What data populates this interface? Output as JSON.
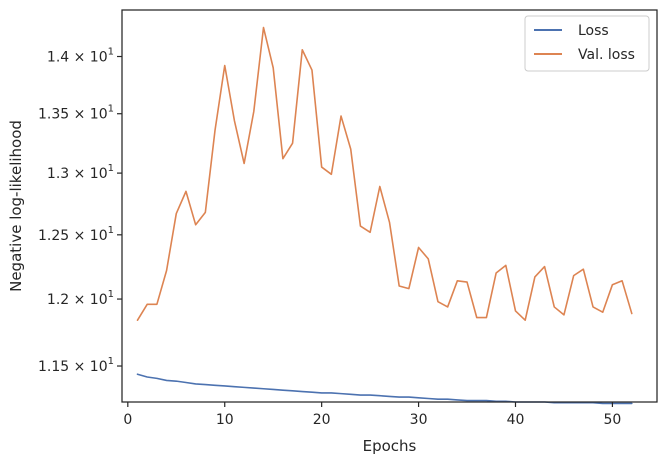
{
  "chart_data": {
    "type": "line",
    "xlabel": "Epochs",
    "ylabel": "Negative log-likelihood",
    "xlim": [
      -0.6,
      54.6
    ],
    "ylim": [
      11.24,
      14.42
    ],
    "yscale": "log",
    "grid": false,
    "legend_position": "top-right",
    "x_ticks": [
      {
        "value": 0,
        "label": "0"
      },
      {
        "value": 10,
        "label": "10"
      },
      {
        "value": 20,
        "label": "20"
      },
      {
        "value": 30,
        "label": "30"
      },
      {
        "value": 40,
        "label": "40"
      },
      {
        "value": 50,
        "label": "50"
      }
    ],
    "y_ticks": [
      {
        "value": 11.5,
        "mantissa": "1.15",
        "sep": " × ",
        "base": "10",
        "exp": "1"
      },
      {
        "value": 12.0,
        "mantissa": "1.2",
        "sep": " × ",
        "base": "10",
        "exp": "1"
      },
      {
        "value": 12.5,
        "mantissa": "1.25",
        "sep": " × ",
        "base": "10",
        "exp": "1"
      },
      {
        "value": 13.0,
        "mantissa": "1.3",
        "sep": " × ",
        "base": "10",
        "exp": "1"
      },
      {
        "value": 13.5,
        "mantissa": "1.35",
        "sep": " × ",
        "base": "10",
        "exp": "1"
      },
      {
        "value": 14.0,
        "mantissa": "1.4",
        "sep": " × ",
        "base": "10",
        "exp": "1"
      }
    ],
    "x": [
      1,
      2,
      3,
      4,
      5,
      6,
      7,
      8,
      9,
      10,
      11,
      12,
      13,
      14,
      15,
      16,
      17,
      18,
      19,
      20,
      21,
      22,
      23,
      24,
      25,
      26,
      27,
      28,
      29,
      30,
      31,
      32,
      33,
      34,
      35,
      36,
      37,
      38,
      39,
      40,
      41,
      42,
      43,
      44,
      45,
      46,
      47,
      48,
      49,
      50,
      51,
      52
    ],
    "series": [
      {
        "name": "Loss",
        "color": "#4c72b0",
        "values": [
          11.44,
          11.42,
          11.41,
          11.395,
          11.39,
          11.38,
          11.37,
          11.365,
          11.36,
          11.355,
          11.35,
          11.345,
          11.34,
          11.335,
          11.33,
          11.325,
          11.32,
          11.315,
          11.31,
          11.305,
          11.305,
          11.3,
          11.295,
          11.29,
          11.29,
          11.285,
          11.28,
          11.275,
          11.275,
          11.27,
          11.265,
          11.26,
          11.26,
          11.255,
          11.25,
          11.25,
          11.25,
          11.245,
          11.245,
          11.24,
          11.24,
          11.24,
          11.24,
          11.235,
          11.235,
          11.235,
          11.235,
          11.235,
          11.23,
          11.23,
          11.23,
          11.23
        ]
      },
      {
        "name": "Val. loss",
        "color": "#dd8452",
        "values": [
          11.84,
          11.96,
          11.96,
          12.22,
          12.67,
          12.85,
          12.58,
          12.68,
          13.36,
          13.92,
          13.44,
          13.08,
          13.52,
          14.26,
          13.9,
          13.12,
          13.25,
          14.06,
          13.88,
          13.05,
          12.99,
          13.48,
          13.2,
          12.57,
          12.52,
          12.89,
          12.6,
          12.1,
          12.08,
          12.4,
          12.31,
          11.98,
          11.94,
          12.14,
          12.13,
          11.86,
          11.86,
          12.2,
          12.26,
          11.91,
          11.84,
          12.17,
          12.25,
          11.94,
          11.88,
          12.18,
          12.23,
          11.94,
          11.9,
          12.11,
          12.14,
          11.89
        ]
      }
    ]
  }
}
